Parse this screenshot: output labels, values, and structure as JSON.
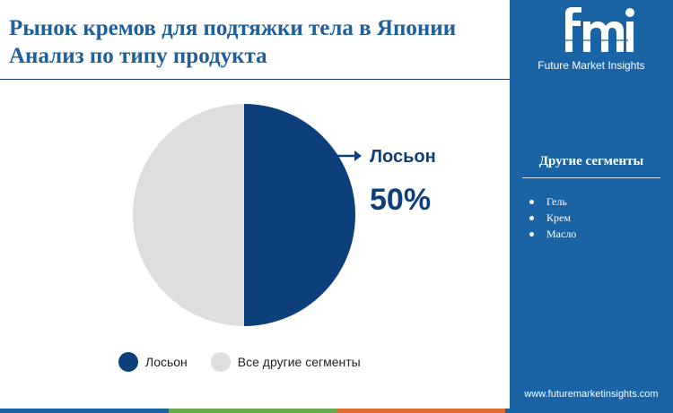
{
  "title": {
    "line1": "Рынок кремов для подтяжки тела в Японии",
    "line2": "Анализ по типу продукта"
  },
  "chart_data": {
    "type": "pie",
    "slices": [
      {
        "label": "Лосьон",
        "value": 50,
        "color": "#0d3f7a"
      },
      {
        "label": "Все другие сегменты",
        "value": 50,
        "color": "#dedede"
      }
    ],
    "callout": {
      "label": "Лосьон",
      "value_text": "50%"
    },
    "legend": {
      "position": "bottom"
    }
  },
  "brand": {
    "logo_icon": "fmi-logo-icon",
    "logo_text": "Future Market Insights",
    "website": "www.futuremarketinsights.com"
  },
  "sidebar": {
    "title": "Другие сегменты",
    "items": [
      "Гель",
      "Крем",
      "Масло"
    ]
  },
  "colors": {
    "primary": "#0d3f7a",
    "panel": "#1a64a6",
    "bar": [
      "#1a64a6",
      "#6aa84f",
      "#e06c2c",
      "#1a64a6"
    ]
  }
}
